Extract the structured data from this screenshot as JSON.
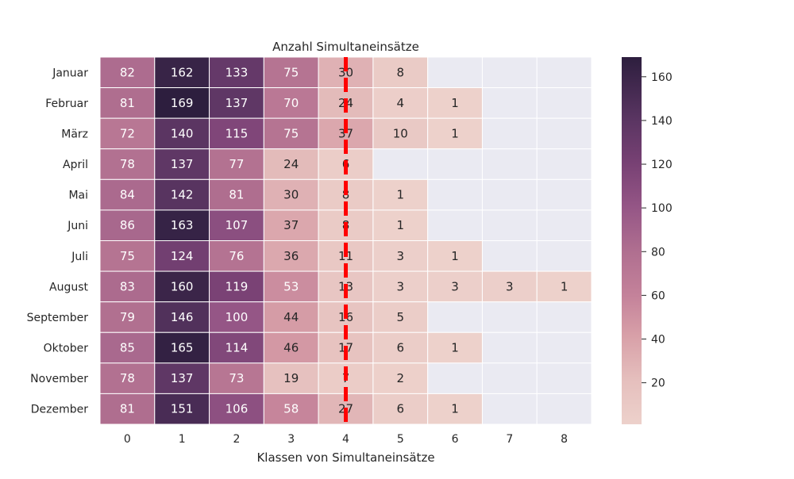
{
  "chart_data": {
    "type": "heatmap",
    "title": "Anzahl Simultaneinsätze",
    "xlabel": "Klassen von Simultaneinsätze",
    "ylabel": "",
    "x_categories": [
      "0",
      "1",
      "2",
      "3",
      "4",
      "5",
      "6",
      "7",
      "8"
    ],
    "y_categories": [
      "Januar",
      "Februar",
      "März",
      "April",
      "Mai",
      "Juni",
      "Juli",
      "August",
      "September",
      "Oktober",
      "November",
      "Dezember"
    ],
    "values": [
      [
        82,
        162,
        133,
        75,
        30,
        8,
        null,
        null,
        null
      ],
      [
        81,
        169,
        137,
        70,
        24,
        4,
        1,
        null,
        null
      ],
      [
        72,
        140,
        115,
        75,
        37,
        10,
        1,
        null,
        null
      ],
      [
        78,
        137,
        77,
        24,
        6,
        null,
        null,
        null,
        null
      ],
      [
        84,
        142,
        81,
        30,
        8,
        1,
        null,
        null,
        null
      ],
      [
        86,
        163,
        107,
        37,
        8,
        1,
        null,
        null,
        null
      ],
      [
        75,
        124,
        76,
        36,
        11,
        3,
        1,
        null,
        null
      ],
      [
        83,
        160,
        119,
        53,
        13,
        3,
        3,
        3,
        1
      ],
      [
        79,
        146,
        100,
        44,
        16,
        5,
        null,
        null,
        null
      ],
      [
        85,
        165,
        114,
        46,
        17,
        6,
        1,
        null,
        null
      ],
      [
        78,
        137,
        73,
        19,
        7,
        2,
        null,
        null,
        null
      ],
      [
        81,
        151,
        106,
        58,
        27,
        6,
        1,
        null,
        null
      ]
    ],
    "colorbar": {
      "range": [
        1,
        169
      ],
      "ticks": [
        "20",
        "40",
        "60",
        "80",
        "100",
        "120",
        "140",
        "160"
      ],
      "colormap": "cubehelix light (pink to dark purple)"
    },
    "missing_color": "#eaeaf2",
    "annotation_line": {
      "x": 4.5,
      "color": "#ff0000",
      "style": "dashed"
    }
  }
}
